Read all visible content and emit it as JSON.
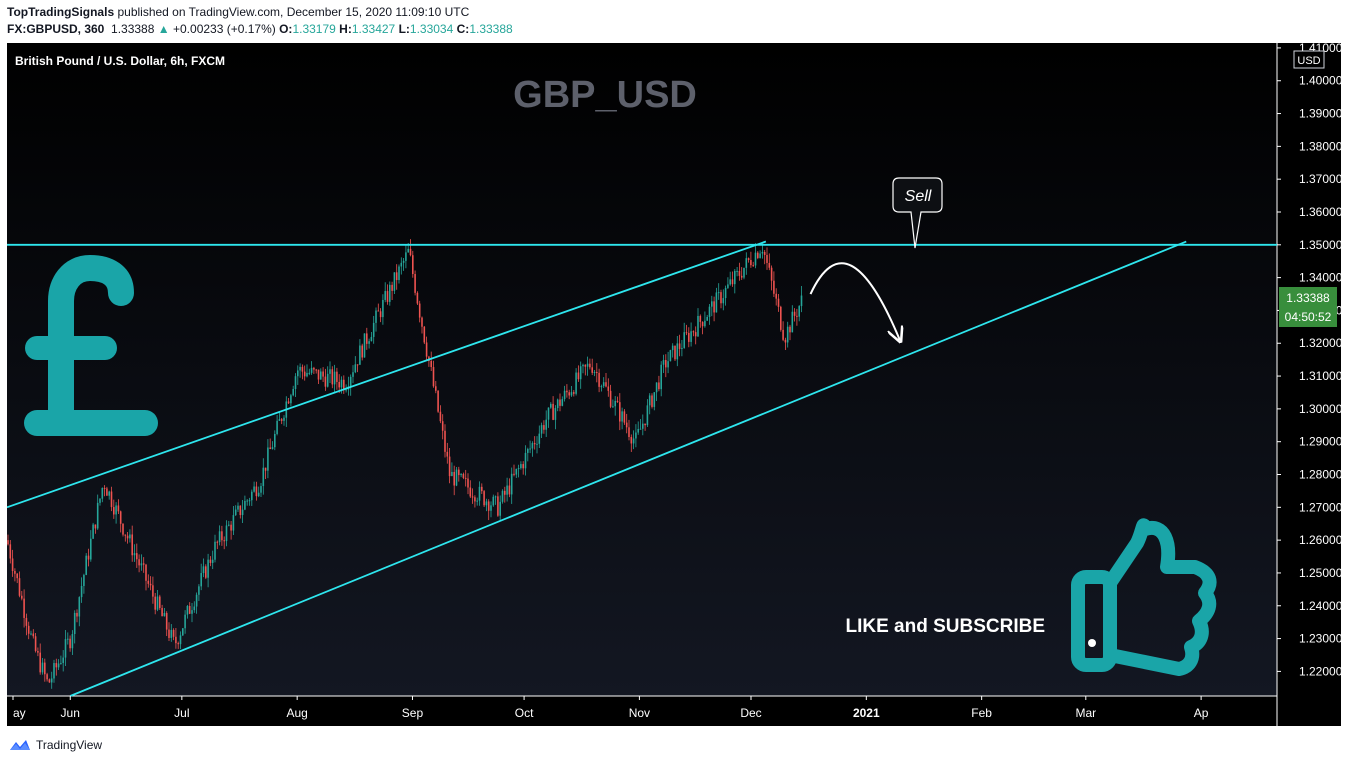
{
  "header": {
    "author": "TopTradingSignals",
    "published": "published on TradingView.com, December 15, 2020 11:09:10 UTC",
    "symbol": "FX:GBPUSD, 360",
    "last": "1.33388",
    "change_arrow": "▲",
    "change": "+0.00233 (+0.17%)",
    "o_label": "O:",
    "o": "1.33179",
    "h_label": "H:",
    "h": "1.33427",
    "l_label": "L:",
    "l": "1.33034",
    "c_label": "C:",
    "c": "1.33388"
  },
  "chart": {
    "legend": "British Pound / U.S. Dollar, 6h, FXCM",
    "watermark": "GBP_USD",
    "currency_badge": "USD",
    "price_label": "1.33388",
    "countdown_label": "04:50:52",
    "callout": "Sell",
    "cta": "LIKE and SUBSCRIBE",
    "icons": [
      "pound-sign-icon",
      "thumbs-up-icon",
      "tradingview-logo-icon"
    ],
    "colors": {
      "background": "#0d0f13",
      "up": "#26a69a",
      "down": "#ef5350",
      "lines": "#2ee6ee",
      "accent_icon": "#1aa5a8",
      "price_badge": "#388e3c"
    }
  },
  "chart_data": {
    "type": "candlestick",
    "timeframe": "6h",
    "x_tick_labels": [
      "ay",
      "Jun",
      "Jul",
      "Aug",
      "Sep",
      "Oct",
      "Nov",
      "Dec",
      "2021",
      "Feb",
      "Mar",
      "Ap"
    ],
    "y_tick_labels": [
      "1.41000",
      "1.40000",
      "1.39000",
      "1.38000",
      "1.37000",
      "1.36000",
      "1.35000",
      "1.34000",
      "1.33000",
      "1.32000",
      "1.31000",
      "1.30000",
      "1.29000",
      "1.28000",
      "1.27000",
      "1.26000",
      "1.25000",
      "1.24000",
      "1.23000",
      "1.22000"
    ],
    "ylim": [
      1.2125,
      1.4115
    ],
    "price_path": [
      {
        "date": "2020-05-15",
        "close": 1.26
      },
      {
        "date": "2020-05-22",
        "close": 1.228
      },
      {
        "date": "2020-05-26",
        "close": 1.216
      },
      {
        "date": "2020-06-01",
        "close": 1.23
      },
      {
        "date": "2020-06-10",
        "close": 1.278
      },
      {
        "date": "2020-06-16",
        "close": 1.262
      },
      {
        "date": "2020-06-29",
        "close": 1.228
      },
      {
        "date": "2020-07-10",
        "close": 1.258
      },
      {
        "date": "2020-07-22",
        "close": 1.278
      },
      {
        "date": "2020-08-01",
        "close": 1.312
      },
      {
        "date": "2020-08-14",
        "close": 1.308
      },
      {
        "date": "2020-08-31",
        "close": 1.348
      },
      {
        "date": "2020-09-11",
        "close": 1.28
      },
      {
        "date": "2020-09-24",
        "close": 1.27
      },
      {
        "date": "2020-10-07",
        "close": 1.297
      },
      {
        "date": "2020-10-19",
        "close": 1.314
      },
      {
        "date": "2020-10-31",
        "close": 1.29
      },
      {
        "date": "2020-11-08",
        "close": 1.314
      },
      {
        "date": "2020-11-22",
        "close": 1.333
      },
      {
        "date": "2020-12-04",
        "close": 1.35
      },
      {
        "date": "2020-12-10",
        "close": 1.322
      },
      {
        "date": "2020-12-15",
        "close": 1.3339
      }
    ],
    "annotations": {
      "horizontal_resistance": 1.35,
      "channel_upper": [
        {
          "date": "2020-05-15",
          "price": 1.27
        },
        {
          "date": "2020-12-05",
          "price": 1.351
        }
      ],
      "channel_lower": [
        {
          "date": "2020-06-01",
          "price": 1.2125
        },
        {
          "date": "2021-03-28",
          "price": 1.351
        }
      ],
      "projection_arrow": [
        {
          "date": "2020-12-17",
          "price": 1.335
        },
        {
          "date": "2020-12-27",
          "price": 1.347
        },
        {
          "date": "2021-01-10",
          "price": 1.321
        }
      ]
    },
    "last_price": 1.33388
  }
}
